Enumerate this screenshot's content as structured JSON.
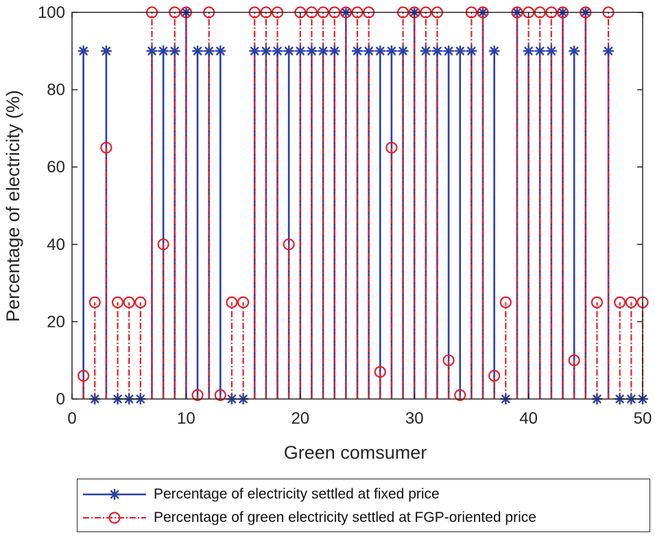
{
  "chart_data": {
    "type": "stem",
    "title": "",
    "xlabel": "Green comsumer",
    "ylabel": "Percentage of electricity (%)",
    "xlim": [
      0,
      50
    ],
    "ylim": [
      0,
      100
    ],
    "xticks": [
      0,
      10,
      20,
      30,
      40,
      50
    ],
    "yticks": [
      0,
      20,
      40,
      60,
      80,
      100
    ],
    "grid": false,
    "legend_position": "bottom-outside",
    "x": [
      1,
      2,
      3,
      4,
      5,
      6,
      7,
      8,
      9,
      10,
      11,
      12,
      13,
      14,
      15,
      16,
      17,
      18,
      19,
      20,
      21,
      22,
      23,
      24,
      25,
      26,
      27,
      28,
      29,
      30,
      31,
      32,
      33,
      34,
      35,
      36,
      37,
      38,
      39,
      40,
      41,
      42,
      43,
      44,
      45,
      46,
      47,
      48,
      49,
      50
    ],
    "series": [
      {
        "name": "Percentage of electricity settled at fixed price",
        "color": "#2b3fa8",
        "marker": "asterisk",
        "line_style": "solid",
        "values": [
          90,
          0,
          90,
          0,
          0,
          0,
          90,
          90,
          90,
          100,
          90,
          90,
          90,
          0,
          0,
          90,
          90,
          90,
          90,
          90,
          90,
          90,
          90,
          100,
          90,
          90,
          90,
          90,
          90,
          100,
          90,
          90,
          90,
          90,
          90,
          100,
          90,
          0,
          100,
          90,
          90,
          90,
          100,
          90,
          100,
          0,
          90,
          0,
          0,
          0
        ]
      },
      {
        "name": "Percentage of green electricity settled at FGP-oriented price",
        "color": "#e8202a",
        "marker": "circle",
        "line_style": "dash-dot",
        "values": [
          6,
          25,
          65,
          25,
          25,
          25,
          100,
          40,
          100,
          100,
          1,
          100,
          1,
          25,
          25,
          100,
          100,
          100,
          40,
          100,
          100,
          100,
          100,
          100,
          100,
          100,
          7,
          65,
          100,
          100,
          100,
          100,
          10,
          1,
          100,
          100,
          6,
          25,
          100,
          100,
          100,
          100,
          100,
          10,
          100,
          25,
          100,
          25,
          25,
          25
        ]
      }
    ]
  }
}
